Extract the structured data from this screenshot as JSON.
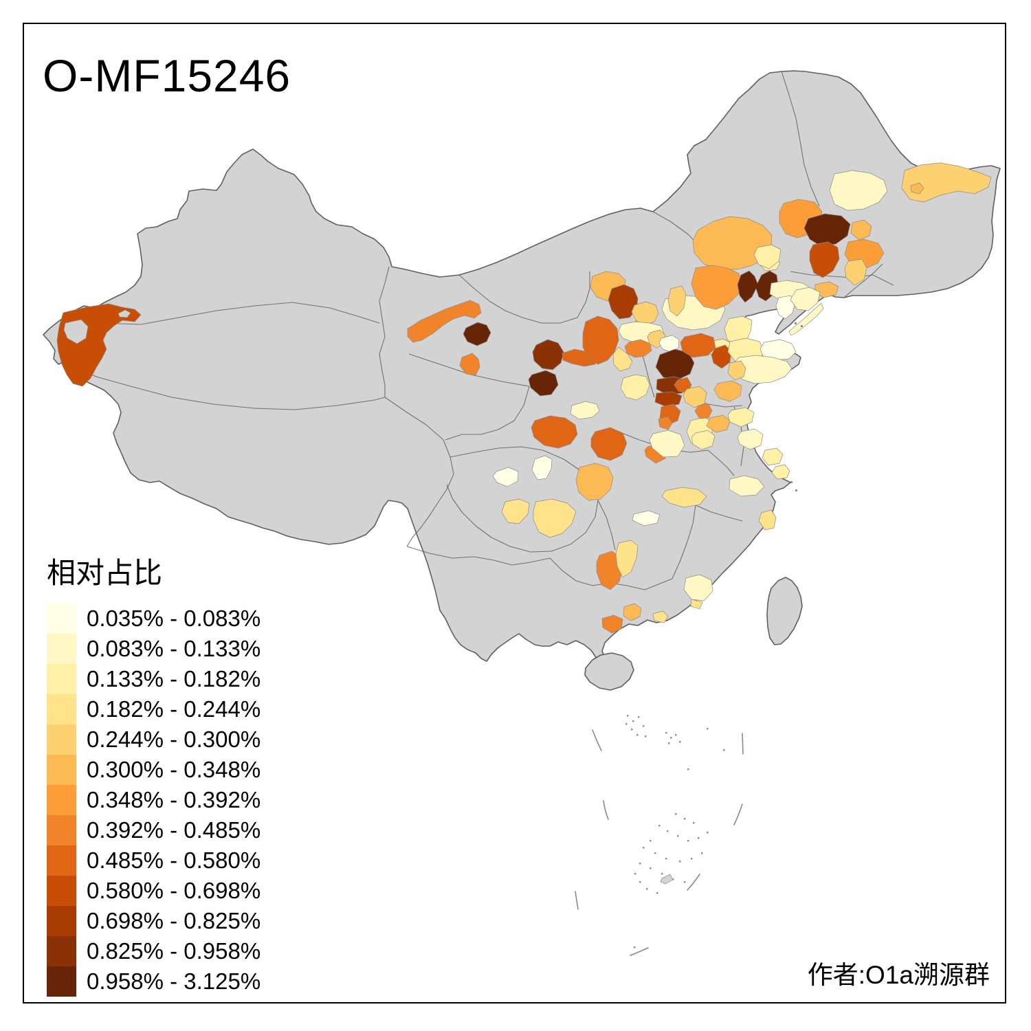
{
  "title": "O-MF15246",
  "attribution": "作者:O1a溯源群",
  "legend": {
    "title": "相对占比",
    "items": [
      {
        "label": "0.035% - 0.083%",
        "color": "#FFFFE5"
      },
      {
        "label": "0.083% - 0.133%",
        "color": "#FFF8C5"
      },
      {
        "label": "0.133% - 0.182%",
        "color": "#FFF0A6"
      },
      {
        "label": "0.182% - 0.244%",
        "color": "#FEE38B"
      },
      {
        "label": "0.244% - 0.300%",
        "color": "#FDD16F"
      },
      {
        "label": "0.300% - 0.348%",
        "color": "#FDBA54"
      },
      {
        "label": "0.348% - 0.392%",
        "color": "#FD9D37"
      },
      {
        "label": "0.392% - 0.485%",
        "color": "#F1842A"
      },
      {
        "label": "0.485% - 0.580%",
        "color": "#E06514"
      },
      {
        "label": "0.580% - 0.698%",
        "color": "#C84E05"
      },
      {
        "label": "0.698% - 0.825%",
        "color": "#A83C03"
      },
      {
        "label": "0.825% - 0.958%",
        "color": "#8A3105"
      },
      {
        "label": "0.958% - 3.125%",
        "color": "#662506"
      }
    ]
  },
  "map": {
    "land_color": "#D3D3D3",
    "border_color": "#5F5F5F",
    "sea_color": "#FFFFFF",
    "frame_color": "#000000"
  }
}
